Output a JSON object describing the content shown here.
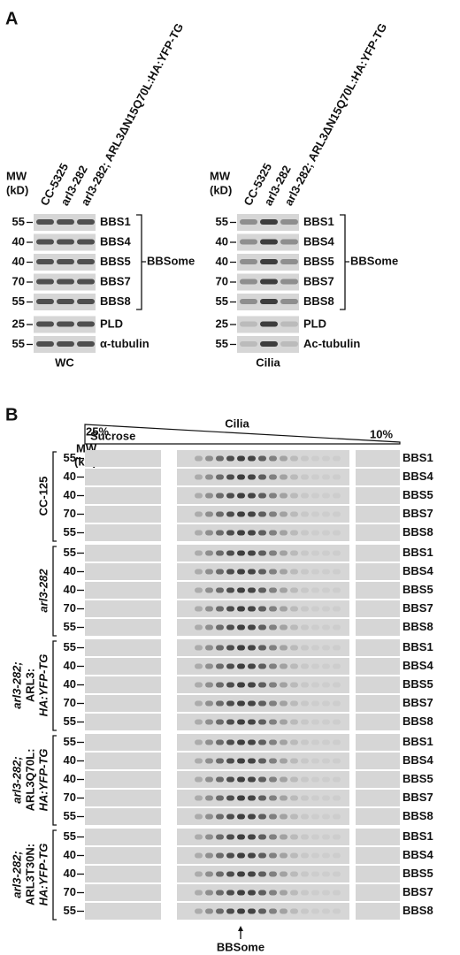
{
  "panel_a": {
    "label": "A",
    "mw_header": [
      "MW",
      "(kD)"
    ],
    "blots": [
      {
        "lanes": [
          "CC-5325",
          "arl3-282",
          "arl3-282; ARL3ΔN15Q70L:HA:YFP-TG"
        ],
        "rows": [
          {
            "mw": "55",
            "name": "BBS1"
          },
          {
            "mw": "40",
            "name": "BBS4"
          },
          {
            "mw": "40",
            "name": "BBS5"
          },
          {
            "mw": "70",
            "name": "BBS7"
          },
          {
            "mw": "55",
            "name": "BBS8"
          },
          {
            "mw": "25",
            "name": "PLD"
          },
          {
            "mw": "55",
            "name": "α-tubulin"
          }
        ],
        "group": "BBSome",
        "sample": "WC"
      },
      {
        "lanes": [
          "CC-5325",
          "arl3-282",
          "arl3-282; ARL3ΔN15Q70L:HA:YFP-TG"
        ],
        "rows": [
          {
            "mw": "55",
            "name": "BBS1"
          },
          {
            "mw": "40",
            "name": "BBS4"
          },
          {
            "mw": "40",
            "name": "BBS5"
          },
          {
            "mw": "70",
            "name": "BBS7"
          },
          {
            "mw": "55",
            "name": "BBS8"
          },
          {
            "mw": "25",
            "name": "PLD"
          },
          {
            "mw": "55",
            "name": "Ac-tubulin"
          }
        ],
        "group": "BBSome",
        "sample": "Cilia"
      }
    ]
  },
  "panel_b": {
    "label": "B",
    "mw_header": [
      "MW",
      "(kD)"
    ],
    "gradient_start": "25%",
    "gradient_end": "10%",
    "gradient_label": "Sucrose",
    "title": "Cilia",
    "marker": "BBSome",
    "groups": [
      {
        "strain": [
          "CC-125"
        ],
        "rows": [
          {
            "mw": "55",
            "name": "BBS1"
          },
          {
            "mw": "40",
            "name": "BBS4"
          },
          {
            "mw": "40",
            "name": "BBS5"
          },
          {
            "mw": "70",
            "name": "BBS7"
          },
          {
            "mw": "55",
            "name": "BBS8"
          }
        ]
      },
      {
        "strain": [
          "arl3-282"
        ],
        "rows": [
          {
            "mw": "55",
            "name": "BBS1"
          },
          {
            "mw": "40",
            "name": "BBS4"
          },
          {
            "mw": "40",
            "name": "BBS5"
          },
          {
            "mw": "70",
            "name": "BBS7"
          },
          {
            "mw": "55",
            "name": "BBS8"
          }
        ]
      },
      {
        "strain": [
          "arl3-282;",
          "ARL3:",
          "HA:YFP-TG"
        ],
        "rows": [
          {
            "mw": "55",
            "name": "BBS1"
          },
          {
            "mw": "40",
            "name": "BBS4"
          },
          {
            "mw": "40",
            "name": "BBS5"
          },
          {
            "mw": "70",
            "name": "BBS7"
          },
          {
            "mw": "55",
            "name": "BBS8"
          }
        ]
      },
      {
        "strain": [
          "arl3-282;",
          "ARL3Q70L:",
          "HA:YFP-TG"
        ],
        "rows": [
          {
            "mw": "55",
            "name": "BBS1"
          },
          {
            "mw": "40",
            "name": "BBS4"
          },
          {
            "mw": "40",
            "name": "BBS5"
          },
          {
            "mw": "70",
            "name": "BBS7"
          },
          {
            "mw": "55",
            "name": "BBS8"
          }
        ]
      },
      {
        "strain": [
          "arl3-282;",
          "ARL3T30N:",
          "HA:YFP-TG"
        ],
        "rows": [
          {
            "mw": "55",
            "name": "BBS1"
          },
          {
            "mw": "40",
            "name": "BBS4"
          },
          {
            "mw": "40",
            "name": "BBS5"
          },
          {
            "mw": "70",
            "name": "BBS7"
          },
          {
            "mw": "55",
            "name": "BBS8"
          }
        ]
      }
    ]
  }
}
